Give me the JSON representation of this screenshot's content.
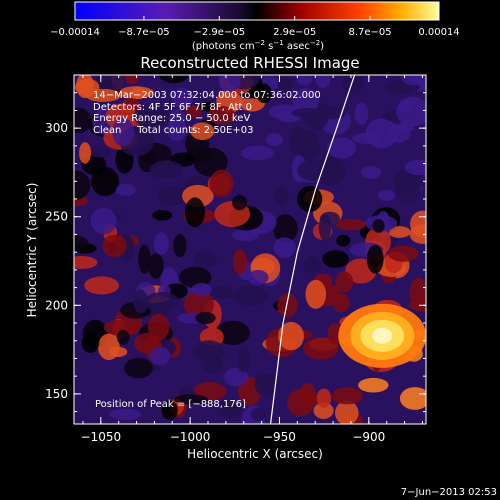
{
  "chart_data": {
    "type": "heatmap",
    "title": "Reconstructed RHESSI Image",
    "xlabel": "Heliocentric X (arcsec)",
    "ylabel": "Heliocentric Y (arcsec)",
    "xlim": [
      -1065,
      -868
    ],
    "ylim": [
      133,
      330
    ],
    "x_ticks": [
      -1050,
      -1000,
      -950,
      -900
    ],
    "x_tick_labels": [
      "−1050",
      "−1000",
      "−950",
      "−900"
    ],
    "y_ticks": [
      150,
      200,
      250,
      300
    ],
    "y_tick_labels": [
      "150",
      "200",
      "250",
      "300"
    ],
    "colorbar": {
      "min": -0.00014,
      "max": 0.00014,
      "tick_values": [
        -0.00014,
        -8.7e-05,
        -2.9e-05,
        2.9e-05,
        8.7e-05,
        0.00014
      ],
      "tick_labels": [
        "−0.00014",
        "−8.7e−05",
        "−2.9e−05",
        "2.9e−05",
        "8.7e−05",
        "0.00014"
      ],
      "label_main": "(photons cm",
      "label_exp1": "−2",
      "label_mid": " s",
      "label_exp2": "−1",
      "label_end": " asec",
      "label_exp3": "−2",
      "label_close": ")"
    },
    "annotations": [
      "14−Mar−2003 07:32:04.000 to 07:36:02.000",
      "Detectors: 4F 5F 6F 7F 8F, Att 0",
      "Energy Range: 25.0 − 50.0 keV",
      "Clean     Total counts: 2.50E+03"
    ],
    "peak_label": "Position of Peak = [−888,176]",
    "peak": [
      -888,
      176
    ],
    "limb_curve": [
      [
        -955,
        133
      ],
      [
        -948,
        190
      ],
      [
        -940,
        230
      ],
      [
        -930,
        265
      ],
      [
        -918,
        300
      ],
      [
        -908,
        330
      ]
    ],
    "footer": "7−Jun−2013 02:53"
  }
}
